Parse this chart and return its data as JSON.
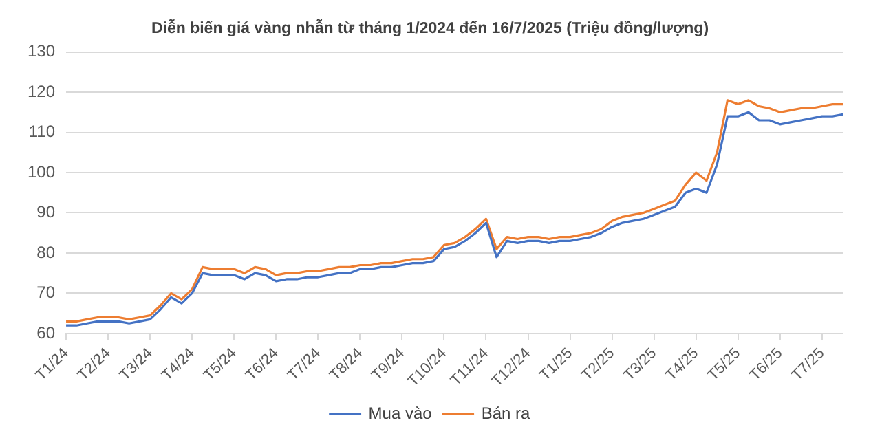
{
  "chart_data": {
    "type": "line",
    "title": "Diễn biến giá vàng nhẫn từ tháng 1/2024 đến 16/7/2025 (Triệu đồng/lượng)",
    "categories": [
      "T1/24",
      null,
      null,
      null,
      "T2/24",
      null,
      null,
      null,
      "T3/24",
      null,
      null,
      null,
      "T4/24",
      null,
      null,
      null,
      "T5/24",
      null,
      null,
      null,
      "T6/24",
      null,
      null,
      null,
      "T7/24",
      null,
      null,
      null,
      "T8/24",
      null,
      null,
      null,
      "T9/24",
      null,
      null,
      null,
      "T10/24",
      null,
      null,
      null,
      "T11/24",
      null,
      null,
      null,
      "T12/24",
      null,
      null,
      null,
      "T1/25",
      null,
      null,
      null,
      "T2/25",
      null,
      null,
      null,
      "T3/25",
      null,
      null,
      null,
      "T4/25",
      null,
      null,
      null,
      "T5/25",
      null,
      null,
      null,
      "T6/25",
      null,
      null,
      null,
      "T7/25",
      null,
      null
    ],
    "series": [
      {
        "name": "Mua vào",
        "color": "#4472c4",
        "values": [
          62,
          62,
          62.5,
          63,
          63,
          63,
          62.5,
          63,
          63.5,
          66,
          69,
          67.5,
          70,
          75,
          74.5,
          74.5,
          74.5,
          73.5,
          75,
          74.5,
          73,
          73.5,
          73.5,
          74,
          74,
          74.5,
          75,
          75,
          76,
          76,
          76.5,
          76.5,
          77,
          77.5,
          77.5,
          78,
          81,
          81.5,
          83,
          85,
          87.5,
          79,
          83,
          82.5,
          83,
          83,
          82.5,
          83,
          83,
          83.5,
          84,
          85,
          86.5,
          87.5,
          88,
          88.5,
          89.5,
          90.5,
          91.5,
          95,
          96,
          95,
          102,
          114,
          114,
          115,
          113,
          113,
          112,
          112.5,
          113,
          113.5,
          114,
          114,
          114.5
        ]
      },
      {
        "name": "Bán ra",
        "color": "#ed7d31",
        "values": [
          63,
          63,
          63.5,
          64,
          64,
          64,
          63.5,
          64,
          64.5,
          67,
          70,
          68.5,
          71,
          76.5,
          76,
          76,
          76,
          75,
          76.5,
          76,
          74.5,
          75,
          75,
          75.5,
          75.5,
          76,
          76.5,
          76.5,
          77,
          77,
          77.5,
          77.5,
          78,
          78.5,
          78.5,
          79,
          82,
          82.5,
          84,
          86,
          88.5,
          81,
          84,
          83.5,
          84,
          84,
          83.5,
          84,
          84,
          84.5,
          85,
          86,
          88,
          89,
          89.5,
          90,
          91,
          92,
          93,
          97,
          100,
          98,
          105,
          118,
          117,
          118,
          116.5,
          116,
          115,
          115.5,
          116,
          116,
          116.5,
          117,
          117
        ]
      }
    ],
    "ylim": [
      60,
      130
    ],
    "yticks": [
      60,
      70,
      80,
      90,
      100,
      110,
      120,
      130
    ],
    "grid": "y",
    "legend": "bottom",
    "marker": "none",
    "line_style": "solid"
  }
}
